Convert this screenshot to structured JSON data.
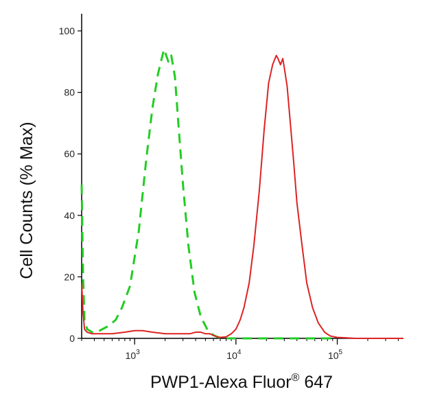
{
  "chart_data": {
    "type": "line",
    "title": "",
    "xlabel": "PWP1-Alexa Fluor® 647",
    "xlabel_parts": {
      "main": "PWP1-Alexa Fluor",
      "superscript": "®",
      "suffix": " 647"
    },
    "ylabel": "Cell Counts (% Max)",
    "x_scale": "log",
    "xlim": [
      300,
      450000
    ],
    "ylim": [
      0,
      100
    ],
    "y_ticks": [
      0,
      20,
      40,
      60,
      80,
      100
    ],
    "y_tick_labels": [
      "0",
      "20",
      "40",
      "60",
      "80",
      "100"
    ],
    "x_ticks": [
      {
        "value": 1000,
        "base": "10",
        "exp": "3"
      },
      {
        "value": 10000,
        "base": "10",
        "exp": "4"
      },
      {
        "value": 100000,
        "base": "10",
        "exp": "5"
      }
    ],
    "grid": false,
    "legend": "none",
    "series": [
      {
        "style": "dashed",
        "color": "#22cc22",
        "x": [
          300,
          310,
          320,
          340,
          380,
          450,
          550,
          650,
          750,
          900,
          1100,
          1300,
          1500,
          1700,
          1850,
          1950,
          2050,
          2150,
          2300,
          2500,
          2700,
          3000,
          3400,
          3900,
          4500,
          5200,
          6000,
          6800,
          8000,
          10000,
          100000
        ],
        "y": [
          50,
          20,
          6,
          3,
          2,
          2.5,
          4,
          6,
          10,
          17,
          35,
          58,
          75,
          86,
          91,
          94,
          92,
          90,
          92,
          85,
          70,
          50,
          30,
          15,
          7,
          3,
          1,
          0.3,
          0,
          0,
          0
        ]
      },
      {
        "style": "solid",
        "color": "#dd2222",
        "x": [
          300,
          310,
          320,
          340,
          380,
          450,
          600,
          800,
          1000,
          1200,
          1500,
          2000,
          2500,
          3000,
          3500,
          4000,
          4500,
          5000,
          5500,
          6000,
          6500,
          7000,
          8000,
          9000,
          10000,
          11000,
          12000,
          13500,
          15000,
          17000,
          19000,
          21000,
          23000,
          25000,
          26000,
          27500,
          29000,
          30000,
          32000,
          34000,
          37000,
          40000,
          45000,
          50000,
          57000,
          65000,
          75000,
          85000,
          100000,
          120000,
          150000,
          200000,
          300000,
          450000
        ],
        "y": [
          18,
          8,
          3,
          2,
          1.5,
          1.5,
          1.5,
          2,
          2.5,
          2.5,
          2,
          1.5,
          1.5,
          1.5,
          1.5,
          2,
          2,
          1.5,
          1.5,
          1,
          0.5,
          0.3,
          0.5,
          1.5,
          3,
          6,
          10,
          18,
          30,
          48,
          68,
          83,
          89,
          92,
          91,
          89,
          91,
          88,
          82,
          72,
          58,
          44,
          30,
          18,
          10,
          5,
          2,
          0.8,
          0.3,
          0.2,
          0,
          0,
          0,
          0
        ]
      }
    ]
  }
}
